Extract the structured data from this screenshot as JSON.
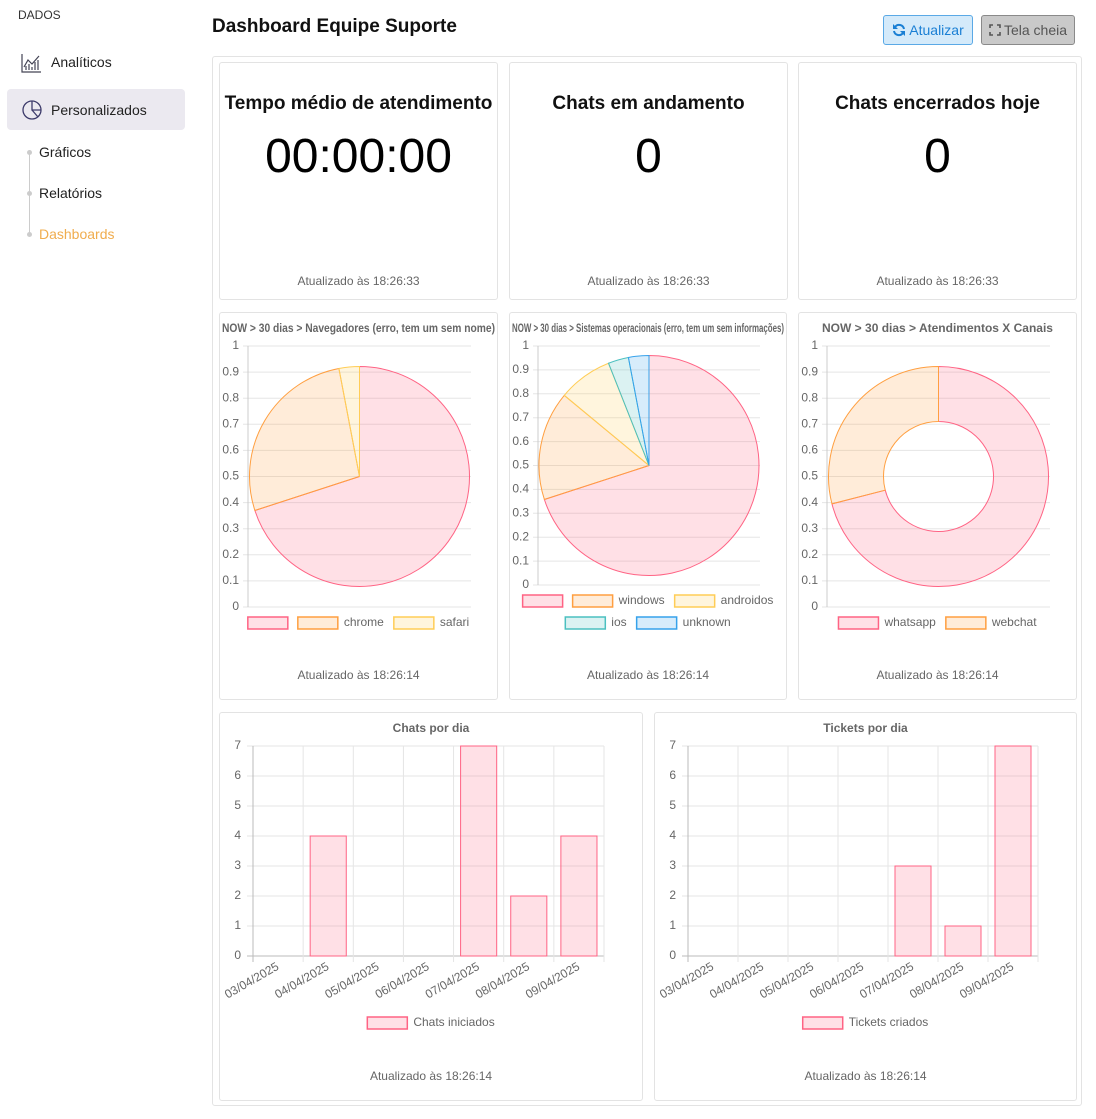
{
  "sidebar": {
    "section": "DADOS",
    "items": [
      "Analíticos",
      "Personalizados"
    ],
    "subitems": [
      "Gráficos",
      "Relatórios",
      "Dashboards"
    ]
  },
  "header": {
    "title": "Dashboard Equipe Suporte",
    "buttons": [
      "Atualizar",
      "Tela cheia"
    ]
  },
  "stats": [
    {
      "title": "Tempo médio de atendimento",
      "value": "00:00:00",
      "updated": "Atualizado às 18:26:33"
    },
    {
      "title": "Chats em andamento",
      "value": 0,
      "updated": "Atualizado às 18:26:33"
    },
    {
      "title": "Chats encerrados hoje",
      "value": 0,
      "updated": "Atualizado às 18:26:33"
    }
  ],
  "chart_data": [
    {
      "type": "pie",
      "title": "NOW > 30 dias > Navegadores (erro, tem um sem nome)",
      "categories": [
        null,
        "chrome",
        "safari"
      ],
      "values": [
        70,
        27,
        3
      ],
      "colors": [
        "#ff6384",
        "#ff9f40",
        "#ffcd56"
      ],
      "ylim": [
        0,
        1
      ],
      "yticks": [
        0,
        0.1,
        0.2,
        0.3,
        0.4,
        0.5,
        0.6,
        0.7,
        0.8,
        0.9,
        1
      ],
      "grid": true,
      "updated": "Atualizado às 18:26:14"
    },
    {
      "type": "pie",
      "title": "NOW > 30 dias > Sistemas operacionais (erro, tem um sem informações)",
      "categories": [
        null,
        "windows",
        "androidos",
        "ios",
        "unknown"
      ],
      "values": [
        70,
        16,
        8,
        3,
        3
      ],
      "colors": [
        "#ff6384",
        "#ff9f40",
        "#ffcd56",
        "#4bc0c0",
        "#36a2eb"
      ],
      "ylim": [
        0,
        1
      ],
      "yticks": [
        0,
        0.1,
        0.2,
        0.3,
        0.4,
        0.5,
        0.6,
        0.7,
        0.8,
        0.9,
        1
      ],
      "grid": true,
      "updated": "Atualizado às 18:26:14"
    },
    {
      "type": "doughnut",
      "title": "NOW > 30 dias > Atendimentos X Canais",
      "categories": [
        "whatsapp",
        "webchat"
      ],
      "values": [
        71,
        29
      ],
      "colors": [
        "#ff6384",
        "#ff9f40"
      ],
      "ylim": [
        0,
        1
      ],
      "yticks": [
        0,
        0.1,
        0.2,
        0.3,
        0.4,
        0.5,
        0.6,
        0.7,
        0.8,
        0.9,
        1
      ],
      "grid": true,
      "updated": "Atualizado às 18:26:14"
    },
    {
      "type": "bar",
      "title": "Chats por dia",
      "categories": [
        "03/04/2025",
        "04/04/2025",
        "05/04/2025",
        "06/04/2025",
        "07/04/2025",
        "08/04/2025",
        "09/04/2025"
      ],
      "series": [
        {
          "name": "Chats iniciados",
          "color": "#ff6384",
          "values": [
            0,
            4,
            0,
            0,
            7,
            2,
            4
          ]
        }
      ],
      "ylim": [
        0,
        7
      ],
      "yticks": [
        0,
        1,
        2,
        3,
        4,
        5,
        6,
        7
      ],
      "grid": true,
      "updated": "Atualizado às 18:26:14"
    },
    {
      "type": "bar",
      "title": "Tickets por dia",
      "categories": [
        "03/04/2025",
        "04/04/2025",
        "05/04/2025",
        "06/04/2025",
        "07/04/2025",
        "08/04/2025",
        "09/04/2025"
      ],
      "series": [
        {
          "name": "Tickets criados",
          "color": "#ff6384",
          "values": [
            0,
            0,
            0,
            0,
            3,
            1,
            7
          ]
        }
      ],
      "ylim": [
        0,
        7
      ],
      "yticks": [
        0,
        1,
        2,
        3,
        4,
        5,
        6,
        7
      ],
      "grid": true,
      "updated": "Atualizado às 18:26:14"
    }
  ]
}
